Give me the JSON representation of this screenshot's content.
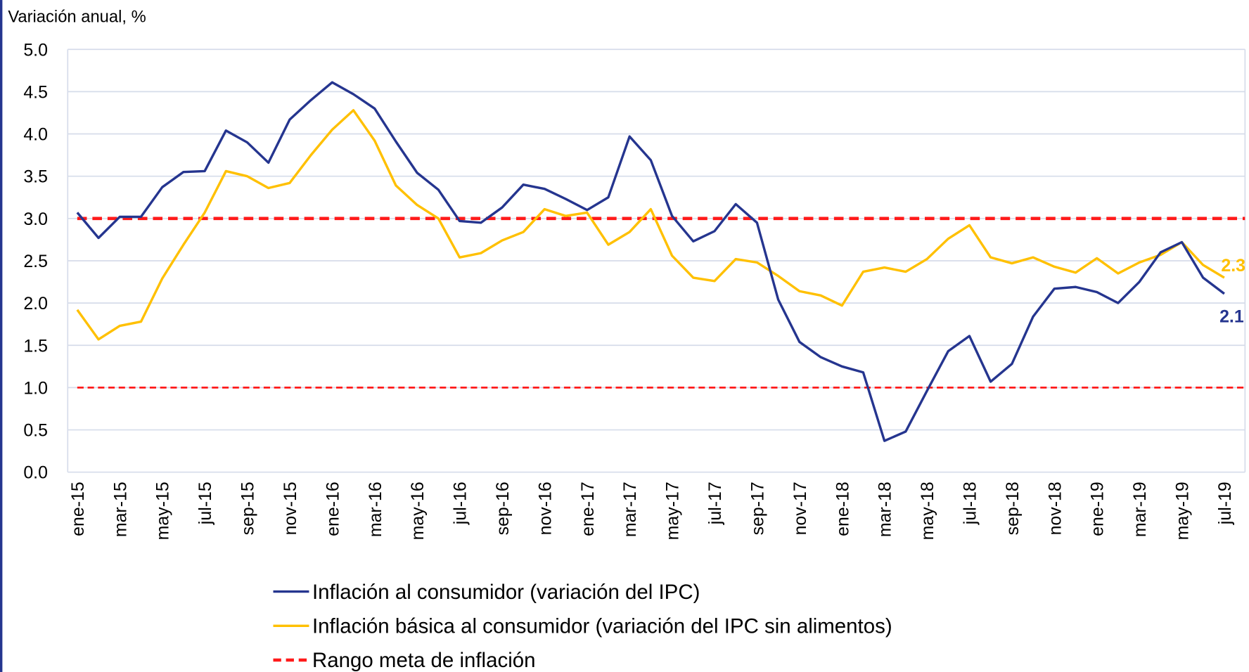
{
  "chart_data": {
    "type": "line",
    "y_label": "Variación anual, %",
    "categories": [
      "ene-15",
      null,
      "mar-15",
      null,
      "may-15",
      null,
      "jul-15",
      null,
      "sep-15",
      null,
      "nov-15",
      null,
      "ene-16",
      null,
      "mar-16",
      null,
      "may-16",
      null,
      "jul-16",
      null,
      "sep-16",
      null,
      "nov-16",
      null,
      "ene-17",
      null,
      "mar-17",
      null,
      "may-17",
      null,
      "jul-17",
      null,
      "sep-17",
      null,
      "nov-17",
      null,
      "ene-18",
      null,
      "mar-18",
      null,
      "may-18",
      null,
      "jul-18",
      null,
      "sep-18",
      null,
      "nov-18",
      null,
      "ene-19",
      null,
      "mar-19",
      null,
      "may-19",
      null,
      "jul-19"
    ],
    "series": [
      {
        "name": "Inflación al consumidor (variación del IPC)",
        "color": "#25358f",
        "values": [
          3.07,
          2.77,
          3.02,
          3.02,
          3.37,
          3.55,
          3.56,
          4.04,
          3.9,
          3.66,
          4.17,
          4.4,
          4.61,
          4.47,
          4.3,
          3.91,
          3.54,
          3.34,
          2.97,
          2.95,
          3.13,
          3.4,
          3.35,
          3.23,
          3.1,
          3.25,
          3.97,
          3.69,
          3.03,
          2.73,
          2.85,
          3.17,
          2.95,
          2.04,
          1.54,
          1.36,
          1.25,
          1.18,
          0.37,
          0.48,
          0.96,
          1.43,
          1.61,
          1.07,
          1.28,
          1.84,
          2.17,
          2.19,
          2.13,
          2.0,
          2.25,
          2.6,
          2.72,
          2.3,
          2.11
        ],
        "end_label": "2.1"
      },
      {
        "name": "Inflación básica al consumidor (variación del IPC sin alimentos)",
        "color": "#ffc000",
        "values": [
          1.92,
          1.57,
          1.73,
          1.78,
          2.29,
          2.69,
          3.07,
          3.56,
          3.5,
          3.36,
          3.42,
          3.75,
          4.05,
          4.28,
          3.92,
          3.39,
          3.16,
          3.0,
          2.54,
          2.59,
          2.74,
          2.84,
          3.11,
          3.03,
          3.07,
          2.69,
          2.84,
          3.11,
          2.56,
          2.3,
          2.26,
          2.52,
          2.48,
          2.32,
          2.14,
          2.09,
          1.97,
          2.37,
          2.42,
          2.37,
          2.52,
          2.76,
          2.92,
          2.54,
          2.47,
          2.54,
          2.43,
          2.36,
          2.53,
          2.35,
          2.48,
          2.57,
          2.72,
          2.45,
          2.3
        ],
        "end_label": "2.3"
      }
    ],
    "target_range": {
      "name": "Rango meta de inflación",
      "color": "#ff1a1a",
      "values": [
        1.0,
        3.0
      ]
    },
    "ylim": [
      0,
      5
    ],
    "yticks": [
      {
        "value": 0,
        "label": "0.0"
      },
      0.5,
      {
        "value": 1,
        "label": "1.0"
      },
      1.5,
      {
        "value": 2,
        "label": "2.0"
      },
      2.5,
      {
        "value": 3,
        "label": "3.0"
      },
      3.5,
      {
        "value": 4,
        "label": "4.0"
      },
      4.5,
      {
        "value": 5,
        "label": "5.0"
      }
    ],
    "grid": true
  }
}
